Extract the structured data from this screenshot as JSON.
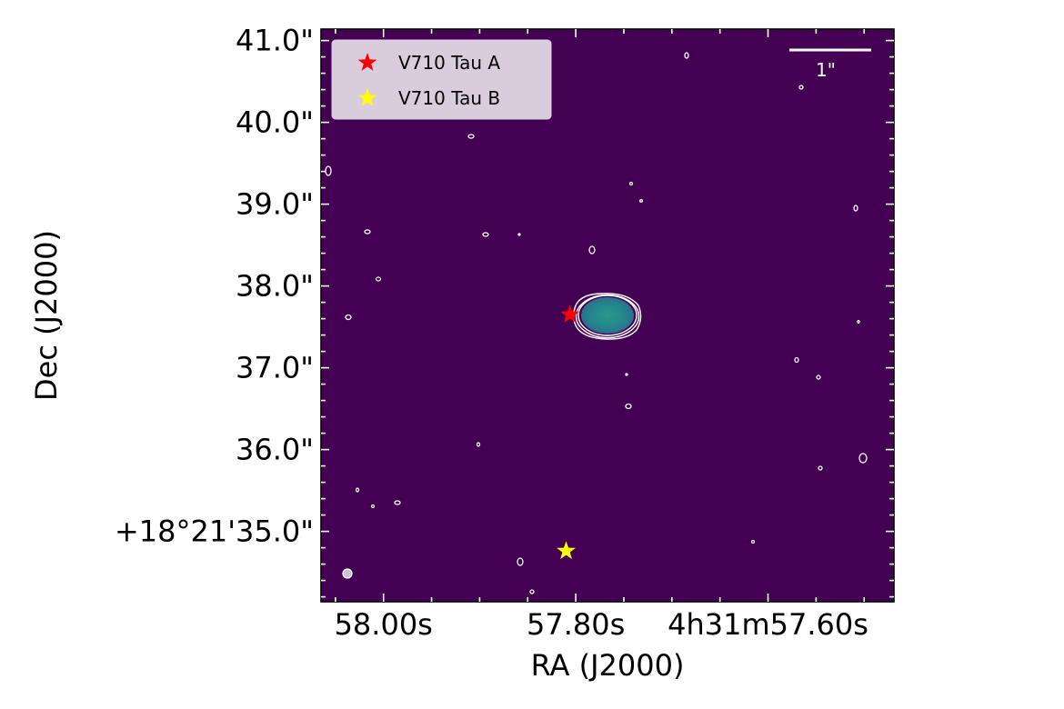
{
  "chart_data": {
    "type": "scatter",
    "title": "",
    "xlabel": "RA (J2000)",
    "ylabel": "Dec (J2000)",
    "x_ticks": [
      {
        "value_s": 58.0,
        "label": "58.00s"
      },
      {
        "value_s": 57.8,
        "label": "57.80s"
      },
      {
        "value_s": 57.6,
        "label": "4h31m57.60s"
      }
    ],
    "y_ticks": [
      {
        "value_arcsec": 35.0,
        "label": "+18°21'35.0\""
      },
      {
        "value_arcsec": 36.0,
        "label": "36.0\""
      },
      {
        "value_arcsec": 37.0,
        "label": "37.0\""
      },
      {
        "value_arcsec": 38.0,
        "label": "38.0\""
      },
      {
        "value_arcsec": 39.0,
        "label": "39.0\""
      },
      {
        "value_arcsec": 40.0,
        "label": "40.0\""
      },
      {
        "value_arcsec": 41.0,
        "label": "41.0\""
      }
    ],
    "xlim_s": [
      58.065,
      57.469
    ],
    "ylim_arcsec": [
      34.14,
      41.14
    ],
    "background_color": "#440154",
    "series": [
      {
        "name": "V710 Tau A",
        "color": "#ff0000",
        "marker": "star",
        "ra_s": 57.806,
        "dec_arcsec": 37.65
      },
      {
        "name": "V710 Tau B",
        "color": "#ffff00",
        "marker": "star",
        "ra_s": 57.81,
        "dec_arcsec": 34.76
      }
    ],
    "legend": {
      "placement": "top-left"
    },
    "scale_bar": {
      "label": "1\"",
      "length_arcsec": 1.0
    },
    "source": {
      "ra_s": 57.808,
      "dec_arcsec": 37.66,
      "colors": [
        "#21918c",
        "#2a788e"
      ]
    }
  }
}
